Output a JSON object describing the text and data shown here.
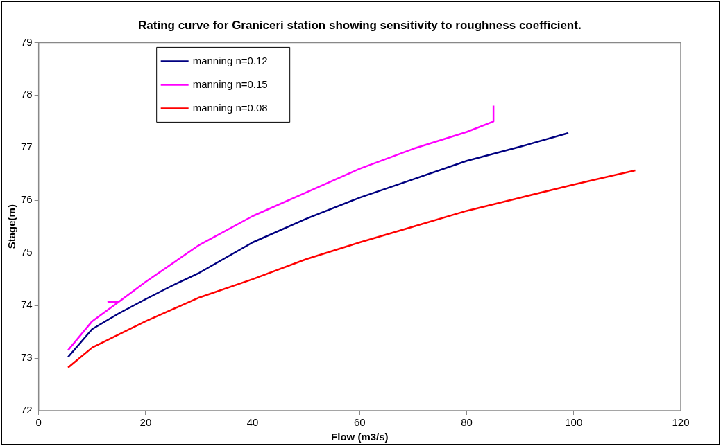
{
  "chart_data": {
    "type": "line",
    "title": "Rating curve for Graniceri station showing sensitivity to roughness coefficient.",
    "xlabel": "Flow (m3/s)",
    "ylabel": "Stage(m)",
    "xlim": [
      0,
      120
    ],
    "xticks": [
      0,
      20,
      40,
      60,
      80,
      100,
      120
    ],
    "ylim": [
      72,
      79
    ],
    "yticks": [
      72,
      73,
      74,
      75,
      76,
      77,
      78,
      79
    ],
    "grid": false,
    "legend": "top left",
    "marker": "none",
    "line_style": "solid",
    "series": [
      {
        "name": "manning n=0.12",
        "color": "#000080",
        "x": [
          5.5,
          10,
          15,
          20,
          25,
          30,
          40,
          50,
          60,
          70,
          80,
          90,
          99
        ],
        "values": [
          73.02,
          73.55,
          73.85,
          74.12,
          74.38,
          74.62,
          75.2,
          75.65,
          76.05,
          76.4,
          76.75,
          77.02,
          77.28
        ]
      },
      {
        "name": "manning n=0.15",
        "color": "#ff00ff",
        "x": [
          5.5,
          10,
          15,
          13,
          15,
          20,
          30,
          40,
          50,
          60,
          70,
          80,
          85,
          85
        ],
        "values": [
          73.15,
          73.7,
          74.07,
          74.07,
          74.07,
          74.45,
          75.15,
          75.7,
          76.15,
          76.6,
          76.98,
          77.3,
          77.5,
          77.8
        ]
      },
      {
        "name": "manning n=0.08",
        "color": "#ff0000",
        "x": [
          5.5,
          10,
          20,
          30,
          40,
          50,
          60,
          70,
          80,
          90,
          100,
          111.5
        ],
        "values": [
          72.82,
          73.2,
          73.7,
          74.15,
          74.5,
          74.88,
          75.2,
          75.5,
          75.8,
          76.05,
          76.3,
          76.57
        ]
      }
    ]
  }
}
